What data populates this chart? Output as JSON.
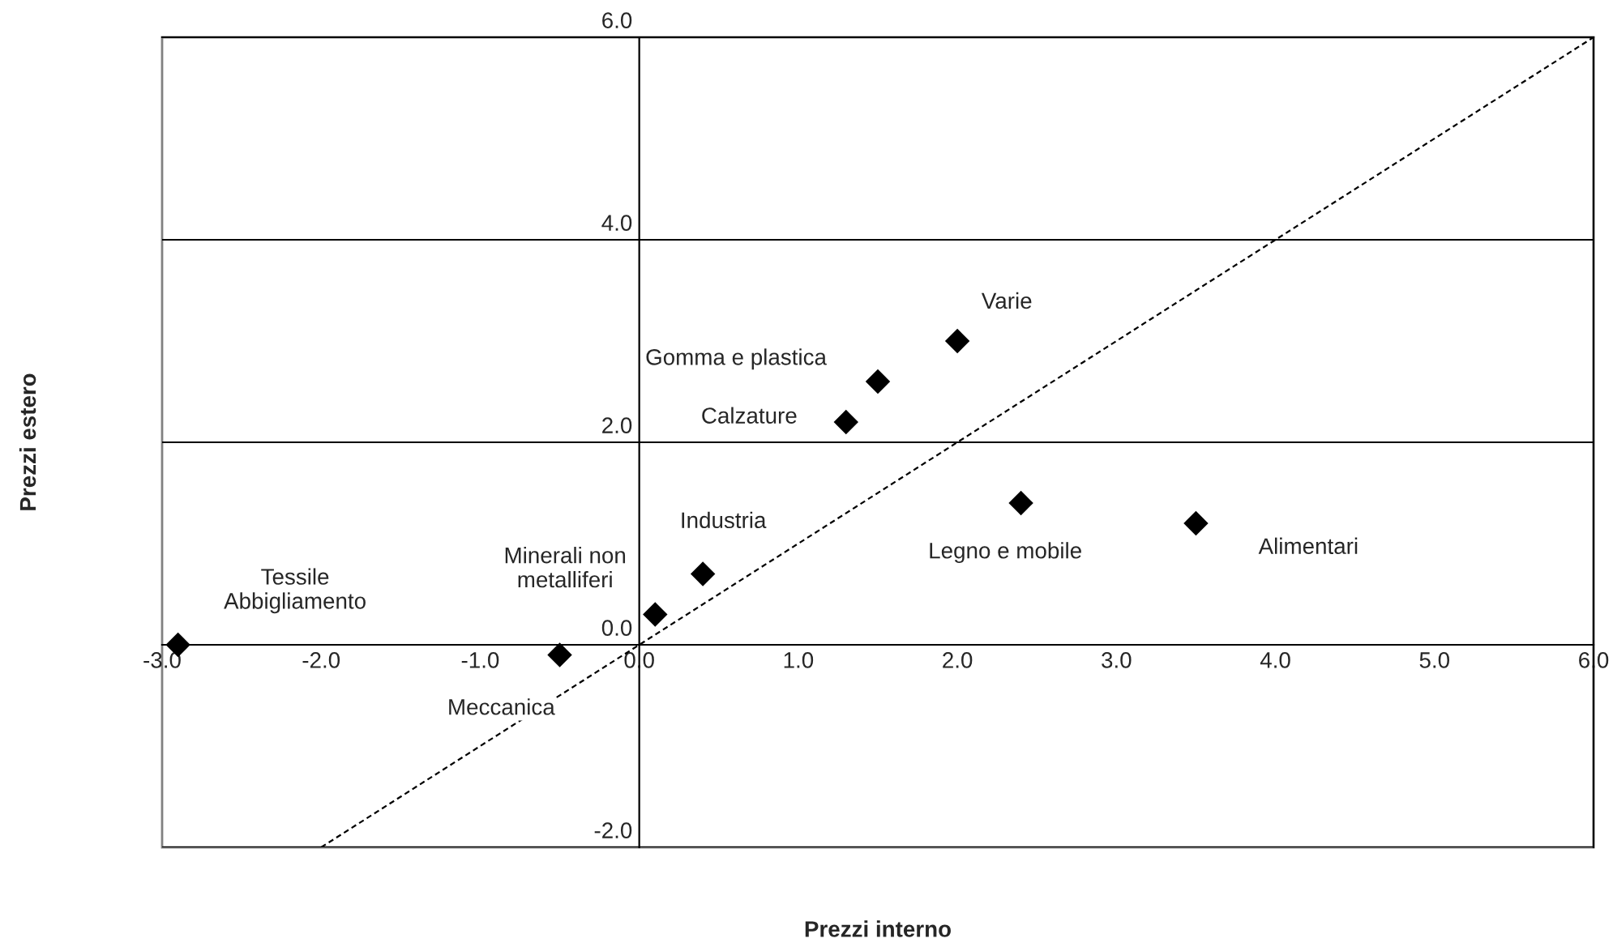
{
  "chart_data": {
    "type": "scatter",
    "xlabel": "Prezzi interno",
    "ylabel": "Prezzi estero",
    "xlim": [
      -3,
      6
    ],
    "ylim": [
      -2,
      6
    ],
    "xticks": [
      {
        "value": -3,
        "label": "-3.0"
      },
      {
        "value": -2,
        "label": "-2.0"
      },
      {
        "value": -1,
        "label": "-1.0"
      },
      {
        "value": 0,
        "label": "0.0"
      },
      {
        "value": 1,
        "label": "1.0"
      },
      {
        "value": 2,
        "label": "2.0"
      },
      {
        "value": 3,
        "label": "3.0"
      },
      {
        "value": 4,
        "label": "4.0"
      },
      {
        "value": 5,
        "label": "5.0"
      },
      {
        "value": 6,
        "label": "6.0"
      }
    ],
    "yticks": [
      {
        "value": -2,
        "label": "-2.0"
      },
      {
        "value": 0,
        "label": "0.0"
      },
      {
        "value": 2,
        "label": "2.0"
      },
      {
        "value": 4,
        "label": "4.0"
      },
      {
        "value": 6,
        "label": "6.0"
      }
    ],
    "grid": "y",
    "series": [
      {
        "color": "#000000",
        "marker": "diamond",
        "x": [
          -2.9,
          -0.5,
          0.1,
          0.4,
          1.3,
          1.5,
          2.0,
          2.4,
          3.5
        ],
        "values": [
          0.0,
          -0.1,
          0.3,
          0.7,
          2.2,
          2.6,
          3.0,
          1.4,
          1.2
        ]
      },
      {
        "type": "line",
        "color": "#000000",
        "line_style": "dashed",
        "marker": "none",
        "x": [
          -2,
          6
        ],
        "values": [
          -2,
          6
        ]
      }
    ],
    "annotations": [
      {
        "text": "Tessile\nAbbigliamento",
        "x": -2.9,
        "y": 0.0
      },
      {
        "text": "Meccanica",
        "x": -0.5,
        "y": -0.1
      },
      {
        "text": "Minerali non\nmetalliferi",
        "x": 0.1,
        "y": 0.3
      },
      {
        "text": "Industria",
        "x": 0.4,
        "y": 0.7
      },
      {
        "text": "Calzature",
        "x": 1.3,
        "y": 2.2
      },
      {
        "text": "Gomma e plastica",
        "x": 1.5,
        "y": 2.6
      },
      {
        "text": "Varie",
        "x": 2.0,
        "y": 3.0
      },
      {
        "text": "Legno e mobile",
        "x": 2.4,
        "y": 1.4
      },
      {
        "text": "Alimentari",
        "x": 3.5,
        "y": 1.2
      }
    ]
  }
}
